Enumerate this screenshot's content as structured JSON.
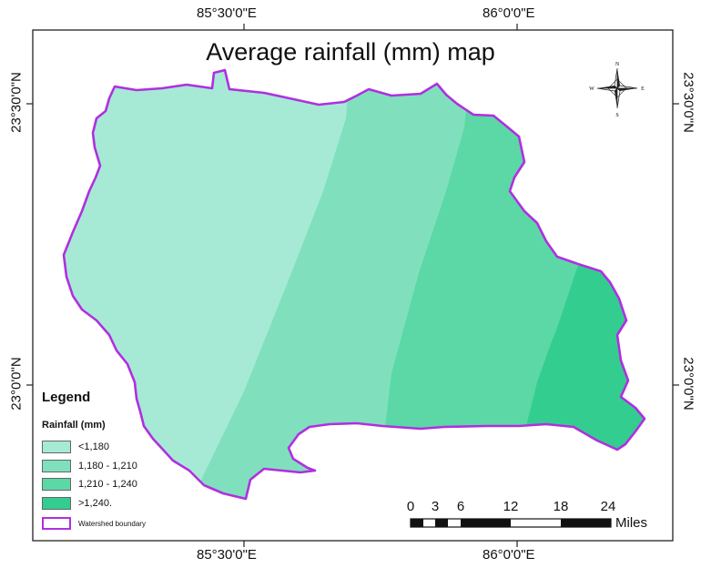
{
  "map": {
    "title": "Average rainfall (mm) map",
    "graticule": {
      "top_left_lon": "85°30'0\"E",
      "top_right_lon": "86°0'0\"E",
      "bottom_left_lon": "85°30'0\"E",
      "bottom_right_lon": "86°0'0\"E",
      "left_upper_lat": "23°30'0\"N",
      "left_lower_lat": "23°0'0\"N",
      "right_upper_lat": "23°30'0\"N",
      "right_lower_lat": "23°0'0\"N"
    },
    "north_arrow": {
      "n": "N",
      "s": "S",
      "e": "E",
      "w": "W"
    },
    "legend": {
      "title": "Legend",
      "subtitle": "Rainfall (mm)",
      "classes": [
        {
          "label": "<1,180",
          "color": "#a6ead5"
        },
        {
          "label": "1,180 - 1,210",
          "color": "#80e0bd"
        },
        {
          "label": "1,210 - 1,240",
          "color": "#5bd8a6"
        },
        {
          "label": ">1,240.",
          "color": "#33cd90"
        }
      ],
      "boundary_label": "Watershed boundary",
      "boundary_color": "#b02fe0"
    },
    "scale_bar": {
      "ticks": [
        "0",
        "3",
        "6",
        "12",
        "18",
        "24"
      ],
      "unit": "Miles"
    }
  }
}
